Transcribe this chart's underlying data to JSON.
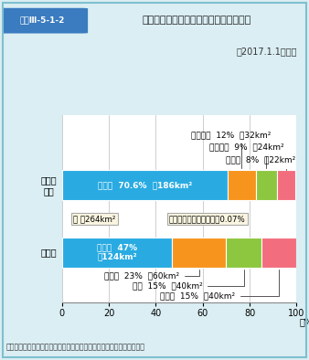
{
  "title": "在日米軍施設・区域（専用施設）の状況",
  "title_label": "図表Ⅲ-5-1-2",
  "date_note": "（2017.1.1現在）",
  "note": "（注）計数は、四捨五入によっているので計と符合しないことがある。",
  "summary_label1": "計 約264km²",
  "summary_label2": "国土面積に占める割合　0.07%",
  "bar1_label": "地域別\n分布",
  "bar2_label": "用途別",
  "bar1_segments": [
    70.6,
    12.0,
    9.0,
    8.0
  ],
  "bar2_segments": [
    47.0,
    23.0,
    15.0,
    15.0
  ],
  "bar1_colors": [
    "#29abe2",
    "#f7941d",
    "#8dc63f",
    "#f26d7d"
  ],
  "bar2_colors": [
    "#29abe2",
    "#f7941d",
    "#8dc63f",
    "#f26d7d"
  ],
  "xlabel": "（%）",
  "xlim": [
    0,
    100
  ],
  "xticks": [
    0,
    20,
    40,
    60,
    80,
    100
  ],
  "bg_color": "#daeef3",
  "plot_bg_color": "#ffffff",
  "border_color": "#7fbfcf",
  "header_bg": "#3b7bbf",
  "bar_height": 0.45
}
